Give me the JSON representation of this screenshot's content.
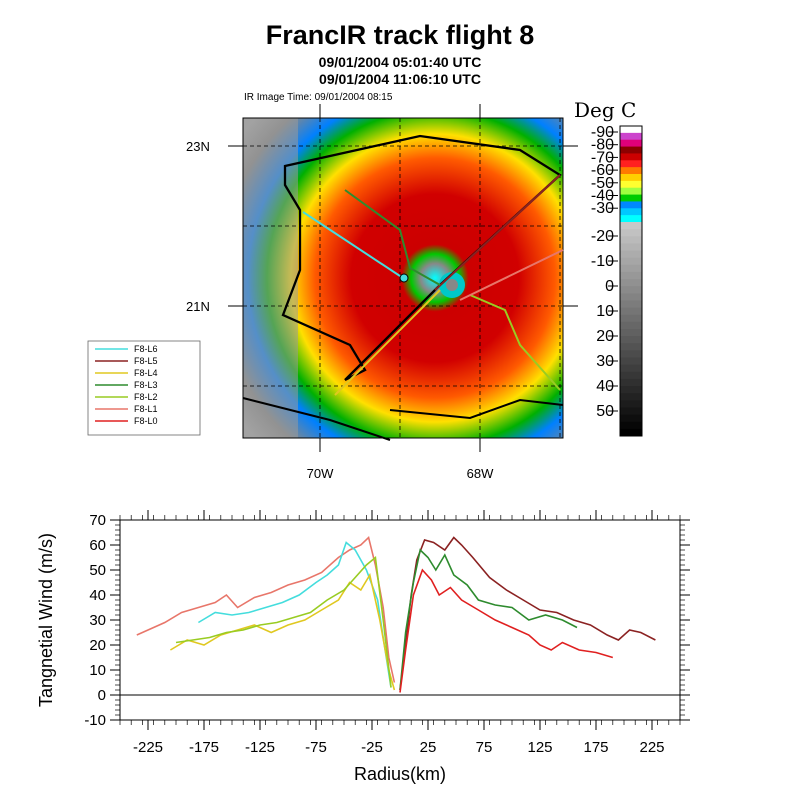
{
  "title": "FrancIR track flight 8",
  "subtitle1": "09/01/2004 05:01:40 UTC",
  "subtitle2": "09/01/2004 11:06:10 UTC",
  "ir_image_time": "IR Image Time: 09/01/2004 08:15",
  "colorbar": {
    "title": "Deg C",
    "labels": [
      "-90",
      "-80",
      "-70",
      "-60",
      "-50",
      "-40",
      "-30",
      "-20",
      "-10",
      "0",
      "10",
      "20",
      "30",
      "40",
      "50"
    ],
    "colors": [
      "#ffffff",
      "#cc44cc",
      "#e0007a",
      "#8c0000",
      "#cc0000",
      "#ff2020",
      "#ff7a00",
      "#ffd000",
      "#ffff30",
      "#a0ff40",
      "#00cc00",
      "#0088ff",
      "#00c8ff",
      "#00ffff"
    ]
  },
  "map": {
    "lat_labels": [
      "23N",
      "21N"
    ],
    "lon_labels": [
      "70W",
      "68W"
    ],
    "legend": [
      "F8-L6",
      "F8-L5",
      "F8-L4",
      "F8-L3",
      "F8-L2",
      "F8-L1",
      "F8-L0"
    ],
    "legend_colors": [
      "#44dddd",
      "#8b2222",
      "#e0c820",
      "#2e8b2e",
      "#99cc22",
      "#e8766a",
      "#e02020"
    ]
  },
  "chart_data": {
    "type": "line",
    "xlabel": "Radius(km)",
    "ylabel": "Tangnetial Wind (m/s)",
    "xlim": [
      -250,
      250
    ],
    "ylim": [
      -10,
      70
    ],
    "xticks": [
      -225,
      -175,
      -125,
      -75,
      -25,
      25,
      75,
      125,
      175,
      225
    ],
    "yticks": [
      -10,
      0,
      10,
      20,
      30,
      40,
      50,
      60,
      70
    ],
    "series": [
      {
        "color": "#e8766a",
        "x": [
          -235,
          -225,
          -210,
          -195,
          -180,
          -165,
          -155,
          -145,
          -130,
          -115,
          -100,
          -85,
          -70,
          -55,
          -45,
          -35,
          -28,
          -22,
          -15,
          -10,
          -5
        ],
        "y": [
          24,
          26,
          29,
          33,
          35,
          37,
          40,
          35,
          39,
          41,
          44,
          46,
          49,
          55,
          58,
          60,
          63,
          52,
          35,
          15,
          5
        ]
      },
      {
        "color": "#44dddd",
        "x": [
          -180,
          -165,
          -150,
          -135,
          -120,
          -105,
          -90,
          -75,
          -65,
          -55,
          -48,
          -40,
          -30,
          -20,
          -14,
          -8
        ],
        "y": [
          29,
          33,
          32,
          33,
          35,
          37,
          40,
          45,
          48,
          52,
          61,
          58,
          50,
          38,
          20,
          3
        ]
      },
      {
        "color": "#e0c820",
        "x": [
          -205,
          -190,
          -175,
          -160,
          -145,
          -130,
          -115,
          -100,
          -85,
          -70,
          -55,
          -45,
          -35,
          -27,
          -18,
          -10,
          -5
        ],
        "y": [
          18,
          22,
          20,
          24,
          26,
          28,
          25,
          28,
          30,
          34,
          38,
          45,
          42,
          48,
          30,
          10,
          2
        ]
      },
      {
        "color": "#99cc22",
        "x": [
          -200,
          -185,
          -170,
          -155,
          -140,
          -125,
          -110,
          -95,
          -80,
          -65,
          -50,
          -40,
          -30,
          -22,
          -15,
          -8
        ],
        "y": [
          21,
          22,
          23,
          25,
          26,
          28,
          29,
          31,
          33,
          38,
          42,
          47,
          52,
          55,
          30,
          3
        ]
      },
      {
        "color": "#8b2222",
        "x": [
          0,
          5,
          10,
          15,
          22,
          30,
          40,
          48,
          55,
          65,
          80,
          95,
          110,
          125,
          140,
          155,
          170,
          185,
          195,
          205,
          215,
          228
        ],
        "y": [
          2,
          20,
          40,
          54,
          62,
          61,
          58,
          63,
          60,
          55,
          47,
          42,
          38,
          34,
          33,
          30,
          28,
          24,
          22,
          26,
          25,
          22
        ]
      },
      {
        "color": "#2e8b2e",
        "x": [
          0,
          5,
          12,
          18,
          25,
          32,
          40,
          48,
          60,
          70,
          85,
          100,
          115,
          130,
          145,
          158
        ],
        "y": [
          2,
          25,
          45,
          58,
          55,
          50,
          56,
          48,
          44,
          38,
          36,
          35,
          30,
          32,
          30,
          27
        ]
      },
      {
        "color": "#e02020",
        "x": [
          0,
          5,
          12,
          20,
          28,
          35,
          45,
          55,
          70,
          85,
          100,
          115,
          125,
          135,
          145,
          160,
          175,
          190
        ],
        "y": [
          1,
          18,
          40,
          50,
          46,
          40,
          43,
          38,
          34,
          30,
          27,
          24,
          20,
          18,
          21,
          18,
          17,
          15
        ]
      }
    ]
  }
}
